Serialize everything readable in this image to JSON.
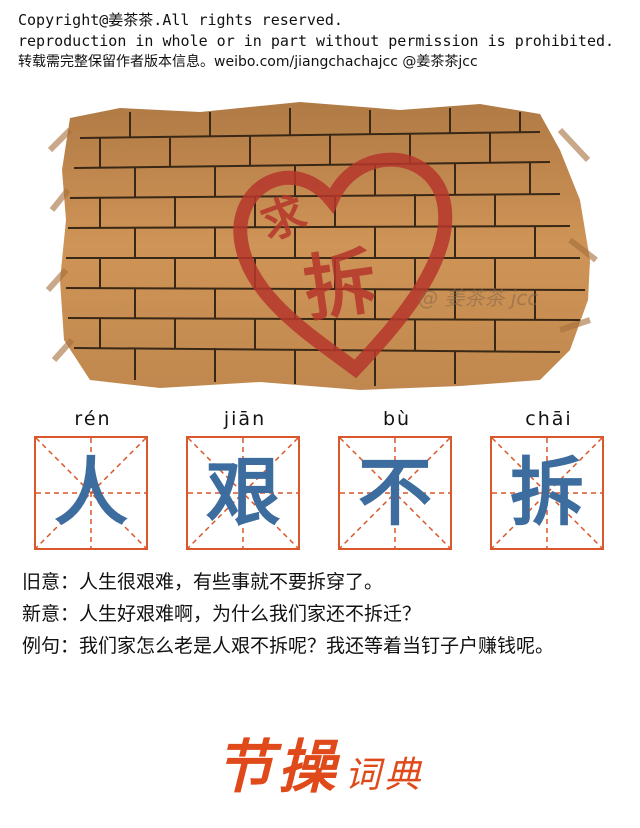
{
  "copyright": {
    "line1": "Copyright@姜茶茶.All rights reserved.",
    "line2": "reproduction in whole or in part without permission is prohibited.",
    "line3": "转载需完整保留作者版本信息。weibo.com/jiangchachajcc @姜茶茶jcc"
  },
  "illustration": {
    "heart_text_1": "求",
    "heart_text_2": "拆",
    "watermark": "@ 姜茶茶 jcc",
    "colors": {
      "brick": "#c58a4c",
      "mortar": "#3a2816",
      "heart": "#b5362b"
    }
  },
  "idiom": [
    {
      "pinyin": "rén",
      "char": "人"
    },
    {
      "pinyin": "jiān",
      "char": "艰"
    },
    {
      "pinyin": "bù",
      "char": "不"
    },
    {
      "pinyin": "chāi",
      "char": "拆"
    }
  ],
  "definitions": {
    "old": "旧意：人生很艰难，有些事就不要拆穿了。",
    "new": "新意：人生好艰难啊，为什么我们家还不拆迁？",
    "example": "例句：我们家怎么老是人艰不拆呢？我还等着当钉子户赚钱呢。"
  },
  "brand": {
    "main": "节操",
    "sub": "词典"
  },
  "colors": {
    "grid_border": "#d9572b",
    "grid_dash": "#d9572b",
    "character": "#3d6c9e",
    "brand": "#e04a1b"
  }
}
